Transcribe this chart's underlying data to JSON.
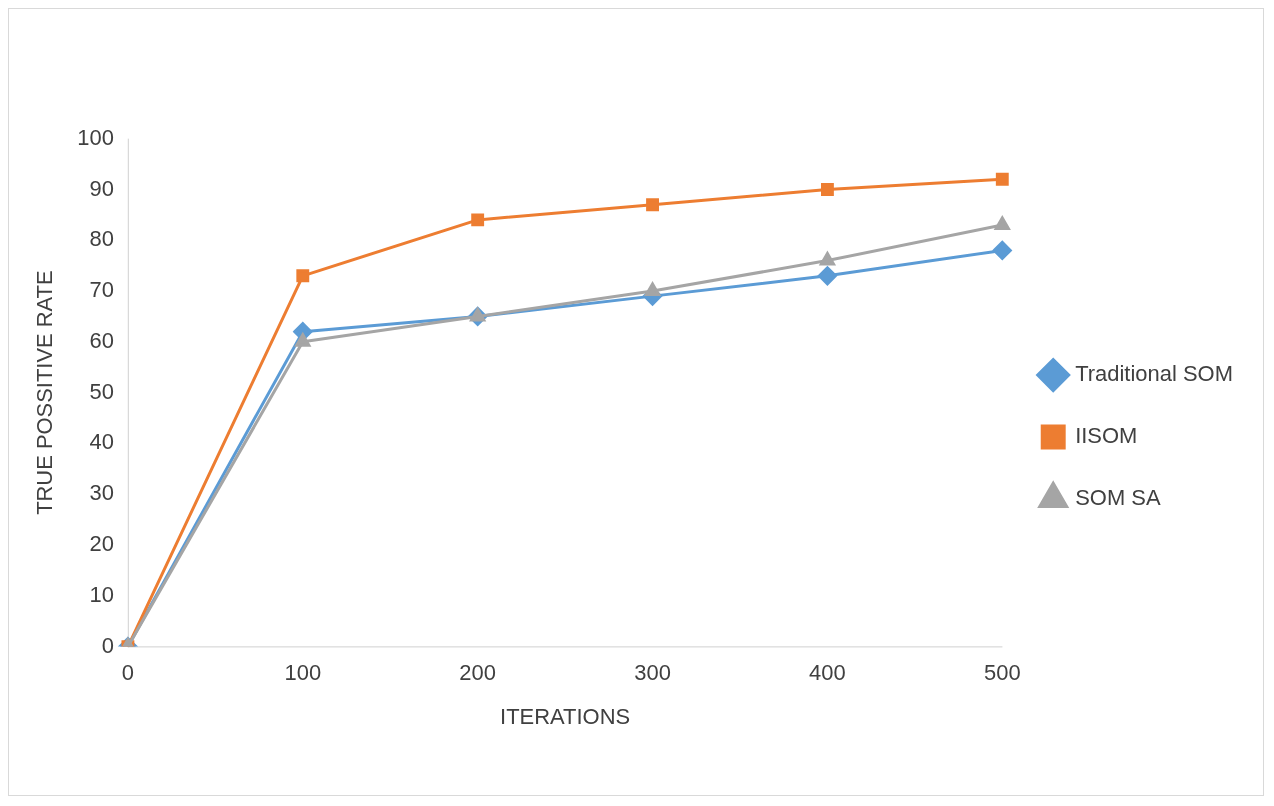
{
  "chart_data": {
    "type": "line",
    "xlabel": "ITERATIONS",
    "ylabel": "TRUE POSSITIVE RATE",
    "categories": [
      "0",
      "100",
      "200",
      "300",
      "400",
      "500"
    ],
    "ylim": [
      0,
      100
    ],
    "yticks": [
      0,
      10,
      20,
      30,
      40,
      50,
      60,
      70,
      80,
      90,
      100
    ],
    "grid": false,
    "legend": "right",
    "line_style": "solid",
    "series": [
      {
        "name": "Traditional SOM",
        "color": "#5b9bd5",
        "marker": "diamond",
        "values": [
          0,
          62,
          65,
          69,
          73,
          78
        ]
      },
      {
        "name": "IISOM",
        "color": "#ed7d31",
        "marker": "square",
        "values": [
          0,
          73,
          84,
          87,
          90,
          92
        ]
      },
      {
        "name": "SOM SA",
        "color": "#a5a5a5",
        "marker": "triangle",
        "values": [
          0,
          60,
          65,
          70,
          76,
          83
        ]
      }
    ]
  }
}
